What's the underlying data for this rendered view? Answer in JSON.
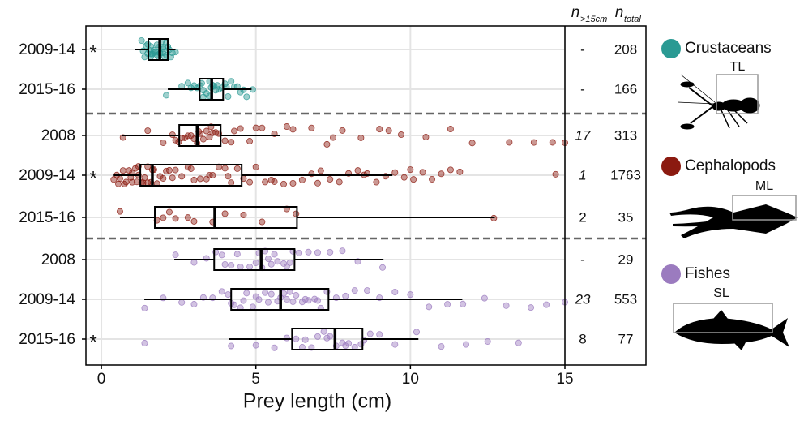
{
  "chart_data": {
    "type": "boxplot",
    "xlabel": "Prey length (cm)",
    "xlim": [
      -0.5,
      15
    ],
    "xticks": [
      0,
      5,
      10,
      15
    ],
    "grid": true,
    "table_header": {
      "n_gt15": {
        "symbol": "n",
        "sub": ">15cm"
      },
      "n_total": {
        "symbol": "n",
        "sub": "total"
      }
    },
    "series": [
      {
        "name": "Crustaceans",
        "color": "#2a9a93",
        "measure": "TL",
        "categories": [
          "2009-14",
          "2015-16"
        ],
        "marker": [
          "*",
          null
        ],
        "n_gt15": [
          "-",
          "-"
        ],
        "n_gt15_italic": [
          false,
          false
        ],
        "n_total": [
          208,
          166
        ],
        "boxes": [
          {
            "whislo": 1.1,
            "q1": 1.52,
            "med": 1.89,
            "q3": 2.15,
            "whishi": 2.4,
            "points": [
              1.3,
              1.4,
              1.45,
              1.5,
              1.5,
              1.55,
              1.6,
              1.6,
              1.65,
              1.7,
              1.7,
              1.75,
              1.8,
              1.8,
              1.85,
              1.9,
              1.9,
              1.95,
              2.0,
              2.0,
              2.05,
              2.1,
              2.1,
              2.2,
              2.25,
              2.3,
              2.4,
              1.35,
              1.6,
              1.85,
              2.0,
              2.15
            ]
          },
          {
            "whislo": 2.15,
            "q1": 3.18,
            "med": 3.57,
            "q3": 3.94,
            "whishi": 4.86,
            "points": [
              2.1,
              2.6,
              2.8,
              3.0,
              3.1,
              3.2,
              3.3,
              3.3,
              3.4,
              3.5,
              3.5,
              3.6,
              3.7,
              3.8,
              3.9,
              4.0,
              4.1,
              4.2,
              4.3,
              4.4,
              4.5,
              4.7,
              4.9,
              3.25,
              3.55,
              3.75,
              4.05,
              2.9,
              3.65,
              4.6
            ]
          }
        ]
      },
      {
        "name": "Cephalopods",
        "color": "#8b1a10",
        "measure": "ML",
        "categories": [
          "2008",
          "2009-14",
          "2015-16"
        ],
        "marker": [
          null,
          "*",
          null
        ],
        "n_gt15": [
          "17",
          "1",
          "2"
        ],
        "n_gt15_italic": [
          true,
          true,
          false
        ],
        "n_total": [
          313,
          1763,
          35
        ],
        "boxes": [
          {
            "whislo": 0.66,
            "q1": 2.52,
            "med": 3.1,
            "q3": 3.86,
            "whishi": 5.77,
            "points": [
              0.7,
              1.5,
              2.0,
              2.3,
              2.5,
              2.6,
              2.7,
              2.8,
              2.9,
              3.0,
              3.1,
              3.2,
              3.3,
              3.4,
              3.5,
              3.6,
              3.7,
              3.8,
              4.0,
              4.2,
              4.5,
              4.8,
              5.2,
              5.6,
              6.2,
              6.8,
              7.3,
              7.8,
              8.4,
              9.0,
              9.7,
              10.5,
              11.3,
              12.0,
              13.2,
              14.0,
              14.6,
              15.0,
              2.4,
              3.15,
              3.55,
              4.3,
              5.0,
              6.0,
              7.5,
              9.3
            ]
          },
          {
            "whislo": 0.4,
            "q1": 1.26,
            "med": 1.65,
            "q3": 4.54,
            "whishi": 9.42,
            "points": [
              0.4,
              0.5,
              0.6,
              0.7,
              0.8,
              0.9,
              1.0,
              1.0,
              1.1,
              1.2,
              1.2,
              1.3,
              1.4,
              1.5,
              1.5,
              1.6,
              1.7,
              1.8,
              1.9,
              2.0,
              2.1,
              2.2,
              2.4,
              2.6,
              2.8,
              3.0,
              3.2,
              3.4,
              3.6,
              3.8,
              4.0,
              4.2,
              4.4,
              4.6,
              4.8,
              5.0,
              5.3,
              5.6,
              5.9,
              6.2,
              6.5,
              6.8,
              7.1,
              7.4,
              7.7,
              8.0,
              8.3,
              8.6,
              8.9,
              9.2,
              9.5,
              9.8,
              10.1,
              10.4,
              10.7,
              11.0,
              11.3,
              11.6,
              0.55,
              0.75,
              0.95,
              1.15,
              1.35,
              1.65,
              2.3,
              2.9,
              3.5,
              4.1,
              5.5,
              7.0,
              8.5,
              10.0,
              14.7
            ]
          },
          {
            "whislo": 0.6,
            "q1": 1.73,
            "med": 3.67,
            "q3": 6.33,
            "whishi": 12.73,
            "points": [
              0.6,
              1.8,
              2.0,
              2.4,
              2.8,
              3.6,
              4.6,
              5.2,
              6.0,
              6.3,
              12.7,
              2.2,
              3.0,
              4.0
            ]
          }
        ]
      },
      {
        "name": "Fishes",
        "color": "#9b7bbf",
        "measure": "SL",
        "categories": [
          "2008",
          "2009-14",
          "2015-16"
        ],
        "marker": [
          null,
          null,
          "*"
        ],
        "n_gt15": [
          "-",
          "23",
          "8"
        ],
        "n_gt15_italic": [
          false,
          true,
          false
        ],
        "n_total": [
          29,
          553,
          77
        ],
        "boxes": [
          {
            "whislo": 2.36,
            "q1": 3.65,
            "med": 5.17,
            "q3": 6.25,
            "whishi": 9.13,
            "points": [
              2.4,
              3.0,
              3.4,
              3.7,
              4.0,
              4.2,
              4.5,
              4.8,
              5.0,
              5.2,
              5.3,
              5.5,
              5.7,
              5.9,
              6.0,
              6.2,
              6.4,
              6.7,
              7.0,
              7.4,
              7.8,
              8.3,
              9.1,
              4.4,
              5.1,
              5.6,
              6.1,
              3.9,
              5.4
            ]
          },
          {
            "whislo": 1.39,
            "q1": 4.2,
            "med": 5.8,
            "q3": 7.35,
            "whishi": 11.68,
            "points": [
              1.4,
              2.0,
              2.6,
              3.0,
              3.3,
              3.6,
              3.9,
              4.1,
              4.3,
              4.5,
              4.7,
              4.9,
              5.1,
              5.3,
              5.5,
              5.7,
              5.9,
              6.1,
              6.3,
              6.5,
              6.7,
              6.9,
              7.1,
              7.3,
              7.6,
              7.9,
              8.2,
              8.6,
              9.0,
              9.5,
              10.0,
              10.6,
              11.2,
              11.7,
              12.4,
              13.1,
              13.9,
              14.4,
              15.0,
              4.6,
              5.0,
              5.8,
              6.0,
              6.6,
              7.0,
              4.2,
              5.4,
              6.2
            ]
          },
          {
            "whislo": 4.12,
            "q1": 6.17,
            "med": 7.56,
            "q3": 8.45,
            "whishi": 10.26,
            "points": [
              1.4,
              4.2,
              5.0,
              5.6,
              6.0,
              6.3,
              6.5,
              6.8,
              7.0,
              7.2,
              7.4,
              7.6,
              7.8,
              8.0,
              8.2,
              8.4,
              8.7,
              9.0,
              9.5,
              10.2,
              11.0,
              11.8,
              12.5,
              13.5,
              6.6,
              7.3,
              7.9,
              8.5
            ]
          }
        ]
      }
    ]
  }
}
